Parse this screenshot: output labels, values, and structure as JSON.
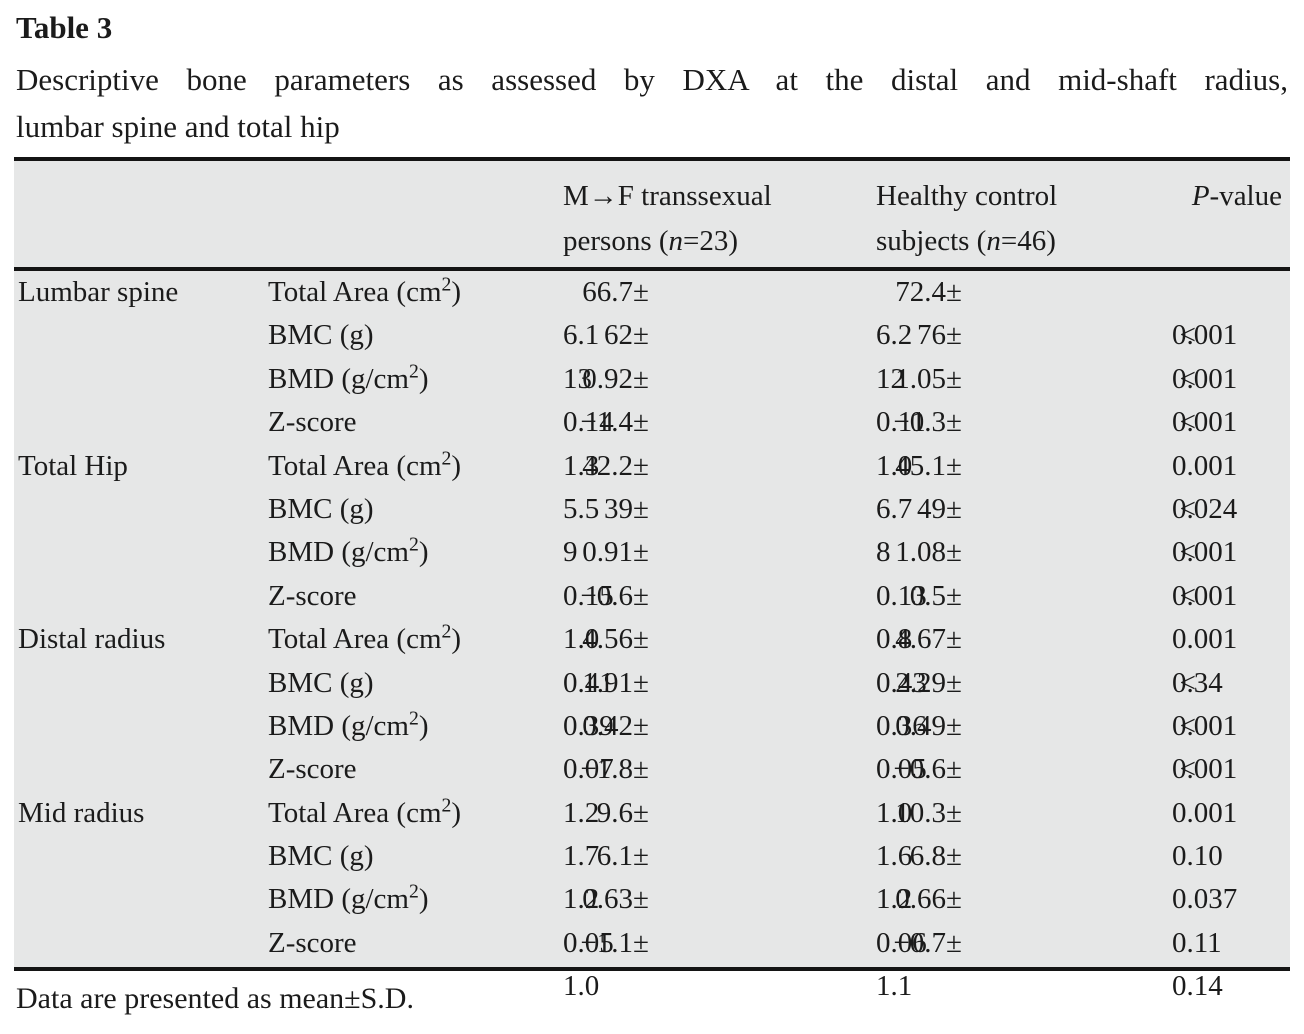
{
  "title": "Table 3",
  "caption": {
    "line1": "Descriptive bone parameters as assessed by DXA at the distal and mid-shaft radius,",
    "line2": "lumbar spine and total hip"
  },
  "header": {
    "col3": {
      "line1": "M→F transsexual",
      "line2_pre": "persons (",
      "line2_n": "n",
      "line2_post": "=23)"
    },
    "col4": {
      "line1": "Healthy control",
      "line2_pre": "subjects (",
      "line2_n": "n",
      "line2_post": "=46)"
    },
    "col5": {
      "p": "P",
      "rest": "-value"
    }
  },
  "table": {
    "groups": [
      {
        "label": "Lumbar spine",
        "rows": [
          {
            "parameter": "Total Area (cm²)",
            "mf": "66.7±6.1",
            "hc": "72.4±6.2",
            "p": "0.001"
          },
          {
            "parameter": "BMC (g)",
            "mf": "62±13",
            "hc": "76±12",
            "p": "<0.001"
          },
          {
            "parameter": "BMD (g/cm²)",
            "mf": "0.92±0.14",
            "hc": "1.05±0.11",
            "p": "<0.001"
          },
          {
            "parameter": "Z-score",
            "mf": "−1.4±1.3",
            "hc": "−0.3±1.0",
            "p": "<0.001"
          }
        ]
      },
      {
        "label": "Total Hip",
        "rows": [
          {
            "parameter": "Total Area (cm²)",
            "mf": "42.2±5.5",
            "hc": "45.1±6.7",
            "p": "0.024"
          },
          {
            "parameter": "BMC (g)",
            "mf": "39±9",
            "hc": "49±8",
            "p": "<0.001"
          },
          {
            "parameter": "BMD (g/cm²)",
            "mf": "0.91±0.15",
            "hc": "1.08±0.13",
            "p": "<0.001"
          },
          {
            "parameter": "Z-score",
            "mf": "−0.6±1.0",
            "hc": "0.5±0.8",
            "p": "<0.001"
          }
        ]
      },
      {
        "label": "Distal radius",
        "rows": [
          {
            "parameter": "Total Area (cm²)",
            "mf": "4.56±0.41",
            "hc": "4.67±0.43",
            "p": "0.34"
          },
          {
            "parameter": "BMC (g)",
            "mf": "1.91±0.39",
            "hc": "2.29±0.36",
            "p": "<0.001"
          },
          {
            "parameter": "BMD (g/cm²)",
            "mf": "0.42±0.07",
            "hc": "0.49±0.05",
            "p": "<0.001"
          },
          {
            "parameter": "Z-score",
            "mf": "−1.8±1.2",
            "hc": "−0.6±1.0",
            "p": "<0.001"
          }
        ]
      },
      {
        "label": "Mid radius",
        "rows": [
          {
            "parameter": "Total Area (cm²)",
            "mf": "9.6±1.7",
            "hc": "10.3±1.6",
            "p": "0.10"
          },
          {
            "parameter": "BMC (g)",
            "mf": "6.1±1.2",
            "hc": "6.8±1.2",
            "p": "0.037"
          },
          {
            "parameter": "BMD (g/cm²)",
            "mf": "0.63±0.05",
            "hc": "0.66±0.06",
            "p": "0.11"
          },
          {
            "parameter": "Z-score",
            "mf": "−1.1±1.0",
            "hc": "−0.7±1.1",
            "p": "0.14"
          }
        ]
      }
    ]
  },
  "footnote": "Data are presented as mean±S.D."
}
